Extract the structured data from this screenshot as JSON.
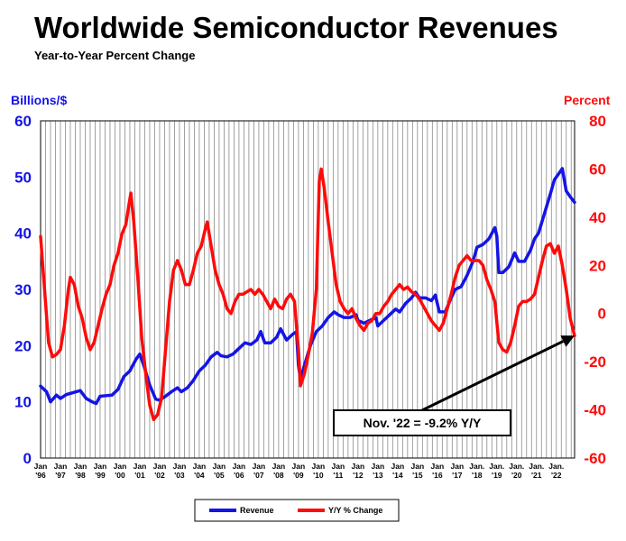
{
  "chart_data": {
    "type": "line",
    "title": "Worldwide Semiconductor Revenues",
    "subtitle": "Year-to-Year Percent Change",
    "y_left_label": "Billions/$",
    "y_right_label": "Percent",
    "y_left_range": [
      0,
      60
    ],
    "y_right_range": [
      -60,
      80
    ],
    "y_left_ticks": [
      "0",
      "10",
      "20",
      "30",
      "40",
      "50",
      "60"
    ],
    "y_right_ticks": [
      "-60",
      "-40",
      "-20",
      "0",
      "20",
      "40",
      "60",
      "80"
    ],
    "x_ticks": [
      {
        "top": "Jan",
        "bottom": "'96",
        "year": 1996
      },
      {
        "top": "Jan",
        "bottom": "'97",
        "year": 1997
      },
      {
        "top": "Jan",
        "bottom": "'98",
        "year": 1998
      },
      {
        "top": "Jan",
        "bottom": "'99",
        "year": 1999
      },
      {
        "top": "Jan",
        "bottom": "'00",
        "year": 2000
      },
      {
        "top": "Jan",
        "bottom": "'01",
        "year": 2001
      },
      {
        "top": "Jan",
        "bottom": "'02",
        "year": 2002
      },
      {
        "top": "Jan",
        "bottom": "'03",
        "year": 2003
      },
      {
        "top": "Jan",
        "bottom": "'04",
        "year": 2004
      },
      {
        "top": "Jan",
        "bottom": "'05",
        "year": 2005
      },
      {
        "top": "Jan",
        "bottom": "'06",
        "year": 2006
      },
      {
        "top": "Jan",
        "bottom": "'07",
        "year": 2007
      },
      {
        "top": "Jan",
        "bottom": "'08",
        "year": 2008
      },
      {
        "top": "Jan",
        "bottom": "'09",
        "year": 2009
      },
      {
        "top": "Jan",
        "bottom": "'10",
        "year": 2010
      },
      {
        "top": "Jan",
        "bottom": "'11",
        "year": 2011
      },
      {
        "top": "Jan",
        "bottom": "'12",
        "year": 2012
      },
      {
        "top": "Jan",
        "bottom": "'13",
        "year": 2013
      },
      {
        "top": "Jan",
        "bottom": "'14",
        "year": 2014
      },
      {
        "top": "Jan",
        "bottom": "'15",
        "year": 2015
      },
      {
        "top": "Jan",
        "bottom": "'16",
        "year": 2016
      },
      {
        "top": "Jan",
        "bottom": "'17",
        "year": 2017
      },
      {
        "top": "Jan.",
        "bottom": "'18",
        "year": 2018
      },
      {
        "top": "Jan.",
        "bottom": "'19",
        "year": 2019
      },
      {
        "top": "Jan.",
        "bottom": "'20",
        "year": 2020
      },
      {
        "top": "Jan.",
        "bottom": "'21",
        "year": 2021
      },
      {
        "top": "Jan.",
        "bottom": "'22",
        "year": 2022
      }
    ],
    "x_range": [
      1996,
      2022.92
    ],
    "grid": "vertical",
    "series": [
      {
        "name": "Revenue",
        "axis": "left",
        "color": "#1414e6",
        "points": [
          [
            1996.0,
            12.8
          ],
          [
            1996.3,
            11.8
          ],
          [
            1996.5,
            10.0
          ],
          [
            1996.8,
            11.2
          ],
          [
            1997.0,
            10.6
          ],
          [
            1997.3,
            11.3
          ],
          [
            1997.6,
            11.6
          ],
          [
            1998.0,
            12.0
          ],
          [
            1998.3,
            10.6
          ],
          [
            1998.6,
            10.0
          ],
          [
            1998.8,
            9.7
          ],
          [
            1999.0,
            11.0
          ],
          [
            1999.3,
            11.1
          ],
          [
            1999.6,
            11.2
          ],
          [
            1999.9,
            12.2
          ],
          [
            2000.2,
            14.5
          ],
          [
            2000.5,
            15.5
          ],
          [
            2000.8,
            17.5
          ],
          [
            2001.0,
            18.5
          ],
          [
            2001.2,
            16.5
          ],
          [
            2001.5,
            13.0
          ],
          [
            2001.8,
            10.5
          ],
          [
            2002.0,
            10.3
          ],
          [
            2002.3,
            11.0
          ],
          [
            2002.6,
            11.8
          ],
          [
            2002.9,
            12.5
          ],
          [
            2003.1,
            11.8
          ],
          [
            2003.4,
            12.5
          ],
          [
            2003.7,
            13.8
          ],
          [
            2004.0,
            15.5
          ],
          [
            2004.3,
            16.5
          ],
          [
            2004.6,
            18.0
          ],
          [
            2004.9,
            18.8
          ],
          [
            2005.1,
            18.2
          ],
          [
            2005.4,
            18.0
          ],
          [
            2005.7,
            18.5
          ],
          [
            2006.0,
            19.5
          ],
          [
            2006.3,
            20.5
          ],
          [
            2006.6,
            20.2
          ],
          [
            2006.9,
            21.0
          ],
          [
            2007.1,
            22.5
          ],
          [
            2007.3,
            20.5
          ],
          [
            2007.6,
            20.5
          ],
          [
            2007.9,
            21.5
          ],
          [
            2008.1,
            23.0
          ],
          [
            2008.4,
            21.0
          ],
          [
            2008.7,
            22.0
          ],
          [
            2008.9,
            22.5
          ],
          [
            2009.0,
            16.5
          ],
          [
            2009.1,
            14.0
          ],
          [
            2009.3,
            16.5
          ],
          [
            2009.6,
            20.0
          ],
          [
            2009.9,
            22.5
          ],
          [
            2010.2,
            23.5
          ],
          [
            2010.5,
            25.0
          ],
          [
            2010.8,
            26.0
          ],
          [
            2011.0,
            25.5
          ],
          [
            2011.3,
            25.0
          ],
          [
            2011.6,
            25.0
          ],
          [
            2011.9,
            25.5
          ],
          [
            2012.0,
            24.5
          ],
          [
            2012.3,
            24.0
          ],
          [
            2012.6,
            24.5
          ],
          [
            2012.9,
            25.0
          ],
          [
            2013.0,
            23.5
          ],
          [
            2013.3,
            24.5
          ],
          [
            2013.6,
            25.5
          ],
          [
            2013.9,
            26.5
          ],
          [
            2014.1,
            26.0
          ],
          [
            2014.4,
            27.5
          ],
          [
            2014.7,
            28.5
          ],
          [
            2014.9,
            29.5
          ],
          [
            2015.1,
            28.5
          ],
          [
            2015.4,
            28.5
          ],
          [
            2015.7,
            28.0
          ],
          [
            2015.9,
            29.0
          ],
          [
            2016.1,
            26.0
          ],
          [
            2016.4,
            26.0
          ],
          [
            2016.7,
            28.5
          ],
          [
            2016.9,
            30.0
          ],
          [
            2017.2,
            30.5
          ],
          [
            2017.5,
            32.5
          ],
          [
            2017.8,
            35.0
          ],
          [
            2018.0,
            37.5
          ],
          [
            2018.3,
            38.0
          ],
          [
            2018.6,
            39.0
          ],
          [
            2018.9,
            41.0
          ],
          [
            2019.0,
            39.5
          ],
          [
            2019.1,
            33.0
          ],
          [
            2019.3,
            33.0
          ],
          [
            2019.6,
            34.0
          ],
          [
            2019.9,
            36.5
          ],
          [
            2020.1,
            35.0
          ],
          [
            2020.4,
            35.0
          ],
          [
            2020.7,
            37.0
          ],
          [
            2020.9,
            39.0
          ],
          [
            2021.1,
            40.0
          ],
          [
            2021.4,
            43.5
          ],
          [
            2021.7,
            47.0
          ],
          [
            2021.9,
            49.5
          ],
          [
            2022.1,
            50.5
          ],
          [
            2022.3,
            51.5
          ],
          [
            2022.5,
            47.5
          ],
          [
            2022.7,
            46.5
          ],
          [
            2022.92,
            45.5
          ]
        ]
      },
      {
        "name": "Y/Y % Change",
        "axis": "right",
        "color": "#ff0a0a",
        "points": [
          [
            1996.0,
            32
          ],
          [
            1996.2,
            10
          ],
          [
            1996.4,
            -12
          ],
          [
            1996.6,
            -18
          ],
          [
            1996.8,
            -17
          ],
          [
            1997.0,
            -15
          ],
          [
            1997.2,
            -5
          ],
          [
            1997.4,
            10
          ],
          [
            1997.5,
            15
          ],
          [
            1997.7,
            12
          ],
          [
            1997.9,
            3
          ],
          [
            1998.1,
            -2
          ],
          [
            1998.3,
            -10
          ],
          [
            1998.5,
            -15
          ],
          [
            1998.7,
            -12
          ],
          [
            1998.9,
            -5
          ],
          [
            1999.1,
            2
          ],
          [
            1999.3,
            8
          ],
          [
            1999.5,
            12
          ],
          [
            1999.7,
            20
          ],
          [
            1999.9,
            25
          ],
          [
            2000.1,
            33
          ],
          [
            2000.3,
            37
          ],
          [
            2000.45,
            45
          ],
          [
            2000.55,
            50
          ],
          [
            2000.7,
            38
          ],
          [
            2000.9,
            15
          ],
          [
            2001.1,
            -10
          ],
          [
            2001.3,
            -25
          ],
          [
            2001.5,
            -38
          ],
          [
            2001.7,
            -44
          ],
          [
            2001.9,
            -42
          ],
          [
            2002.1,
            -35
          ],
          [
            2002.3,
            -15
          ],
          [
            2002.5,
            5
          ],
          [
            2002.7,
            18
          ],
          [
            2002.9,
            22
          ],
          [
            2003.1,
            18
          ],
          [
            2003.3,
            12
          ],
          [
            2003.5,
            12
          ],
          [
            2003.7,
            18
          ],
          [
            2003.9,
            25
          ],
          [
            2004.1,
            28
          ],
          [
            2004.3,
            35
          ],
          [
            2004.4,
            38
          ],
          [
            2004.6,
            28
          ],
          [
            2004.8,
            18
          ],
          [
            2005.0,
            12
          ],
          [
            2005.2,
            8
          ],
          [
            2005.4,
            2
          ],
          [
            2005.6,
            0
          ],
          [
            2005.8,
            5
          ],
          [
            2006.0,
            8
          ],
          [
            2006.2,
            8
          ],
          [
            2006.4,
            9
          ],
          [
            2006.6,
            10
          ],
          [
            2006.8,
            8
          ],
          [
            2007.0,
            10
          ],
          [
            2007.2,
            8
          ],
          [
            2007.4,
            5
          ],
          [
            2007.6,
            2
          ],
          [
            2007.8,
            6
          ],
          [
            2008.0,
            3
          ],
          [
            2008.2,
            2
          ],
          [
            2008.4,
            6
          ],
          [
            2008.6,
            8
          ],
          [
            2008.8,
            5
          ],
          [
            2009.0,
            -15
          ],
          [
            2009.1,
            -30
          ],
          [
            2009.3,
            -25
          ],
          [
            2009.5,
            -17
          ],
          [
            2009.7,
            -8
          ],
          [
            2009.9,
            10
          ],
          [
            2010.05,
            55
          ],
          [
            2010.15,
            60
          ],
          [
            2010.3,
            52
          ],
          [
            2010.5,
            38
          ],
          [
            2010.7,
            25
          ],
          [
            2010.9,
            12
          ],
          [
            2011.1,
            5
          ],
          [
            2011.3,
            2
          ],
          [
            2011.5,
            0
          ],
          [
            2011.7,
            2
          ],
          [
            2011.9,
            -2
          ],
          [
            2012.1,
            -5
          ],
          [
            2012.3,
            -7
          ],
          [
            2012.5,
            -4
          ],
          [
            2012.7,
            -3
          ],
          [
            2012.9,
            0
          ],
          [
            2013.1,
            0
          ],
          [
            2013.3,
            3
          ],
          [
            2013.5,
            5
          ],
          [
            2013.7,
            8
          ],
          [
            2013.9,
            10
          ],
          [
            2014.1,
            12
          ],
          [
            2014.3,
            10
          ],
          [
            2014.5,
            11
          ],
          [
            2014.7,
            9
          ],
          [
            2014.9,
            8
          ],
          [
            2015.1,
            6
          ],
          [
            2015.3,
            3
          ],
          [
            2015.5,
            0
          ],
          [
            2015.7,
            -3
          ],
          [
            2015.9,
            -5
          ],
          [
            2016.1,
            -7
          ],
          [
            2016.3,
            -4
          ],
          [
            2016.5,
            2
          ],
          [
            2016.7,
            8
          ],
          [
            2016.9,
            15
          ],
          [
            2017.1,
            20
          ],
          [
            2017.3,
            22
          ],
          [
            2017.5,
            24
          ],
          [
            2017.7,
            22
          ],
          [
            2017.9,
            22
          ],
          [
            2018.1,
            22
          ],
          [
            2018.3,
            20
          ],
          [
            2018.5,
            14
          ],
          [
            2018.7,
            10
          ],
          [
            2018.9,
            5
          ],
          [
            2019.1,
            -12
          ],
          [
            2019.3,
            -15
          ],
          [
            2019.5,
            -16
          ],
          [
            2019.7,
            -12
          ],
          [
            2019.9,
            -5
          ],
          [
            2020.1,
            3
          ],
          [
            2020.3,
            5
          ],
          [
            2020.5,
            5
          ],
          [
            2020.7,
            6
          ],
          [
            2020.9,
            8
          ],
          [
            2021.1,
            15
          ],
          [
            2021.3,
            22
          ],
          [
            2021.5,
            28
          ],
          [
            2021.7,
            29
          ],
          [
            2021.9,
            25
          ],
          [
            2022.1,
            28
          ],
          [
            2022.3,
            20
          ],
          [
            2022.5,
            10
          ],
          [
            2022.7,
            -2
          ],
          [
            2022.92,
            -9.2
          ]
        ]
      }
    ],
    "legend": {
      "placement": "bottom-center",
      "items": [
        {
          "label": "Revenue",
          "color": "#1414e6"
        },
        {
          "label": "Y/Y % Change",
          "color": "#ff0a0a"
        }
      ]
    },
    "annotation": {
      "text": "Nov. '22 = -9.2% Y/Y",
      "points_to": [
        2022.92,
        -9.2
      ],
      "axis": "right"
    },
    "axis_colors": {
      "left": "#1414e6",
      "right": "#ff0a0a"
    }
  }
}
